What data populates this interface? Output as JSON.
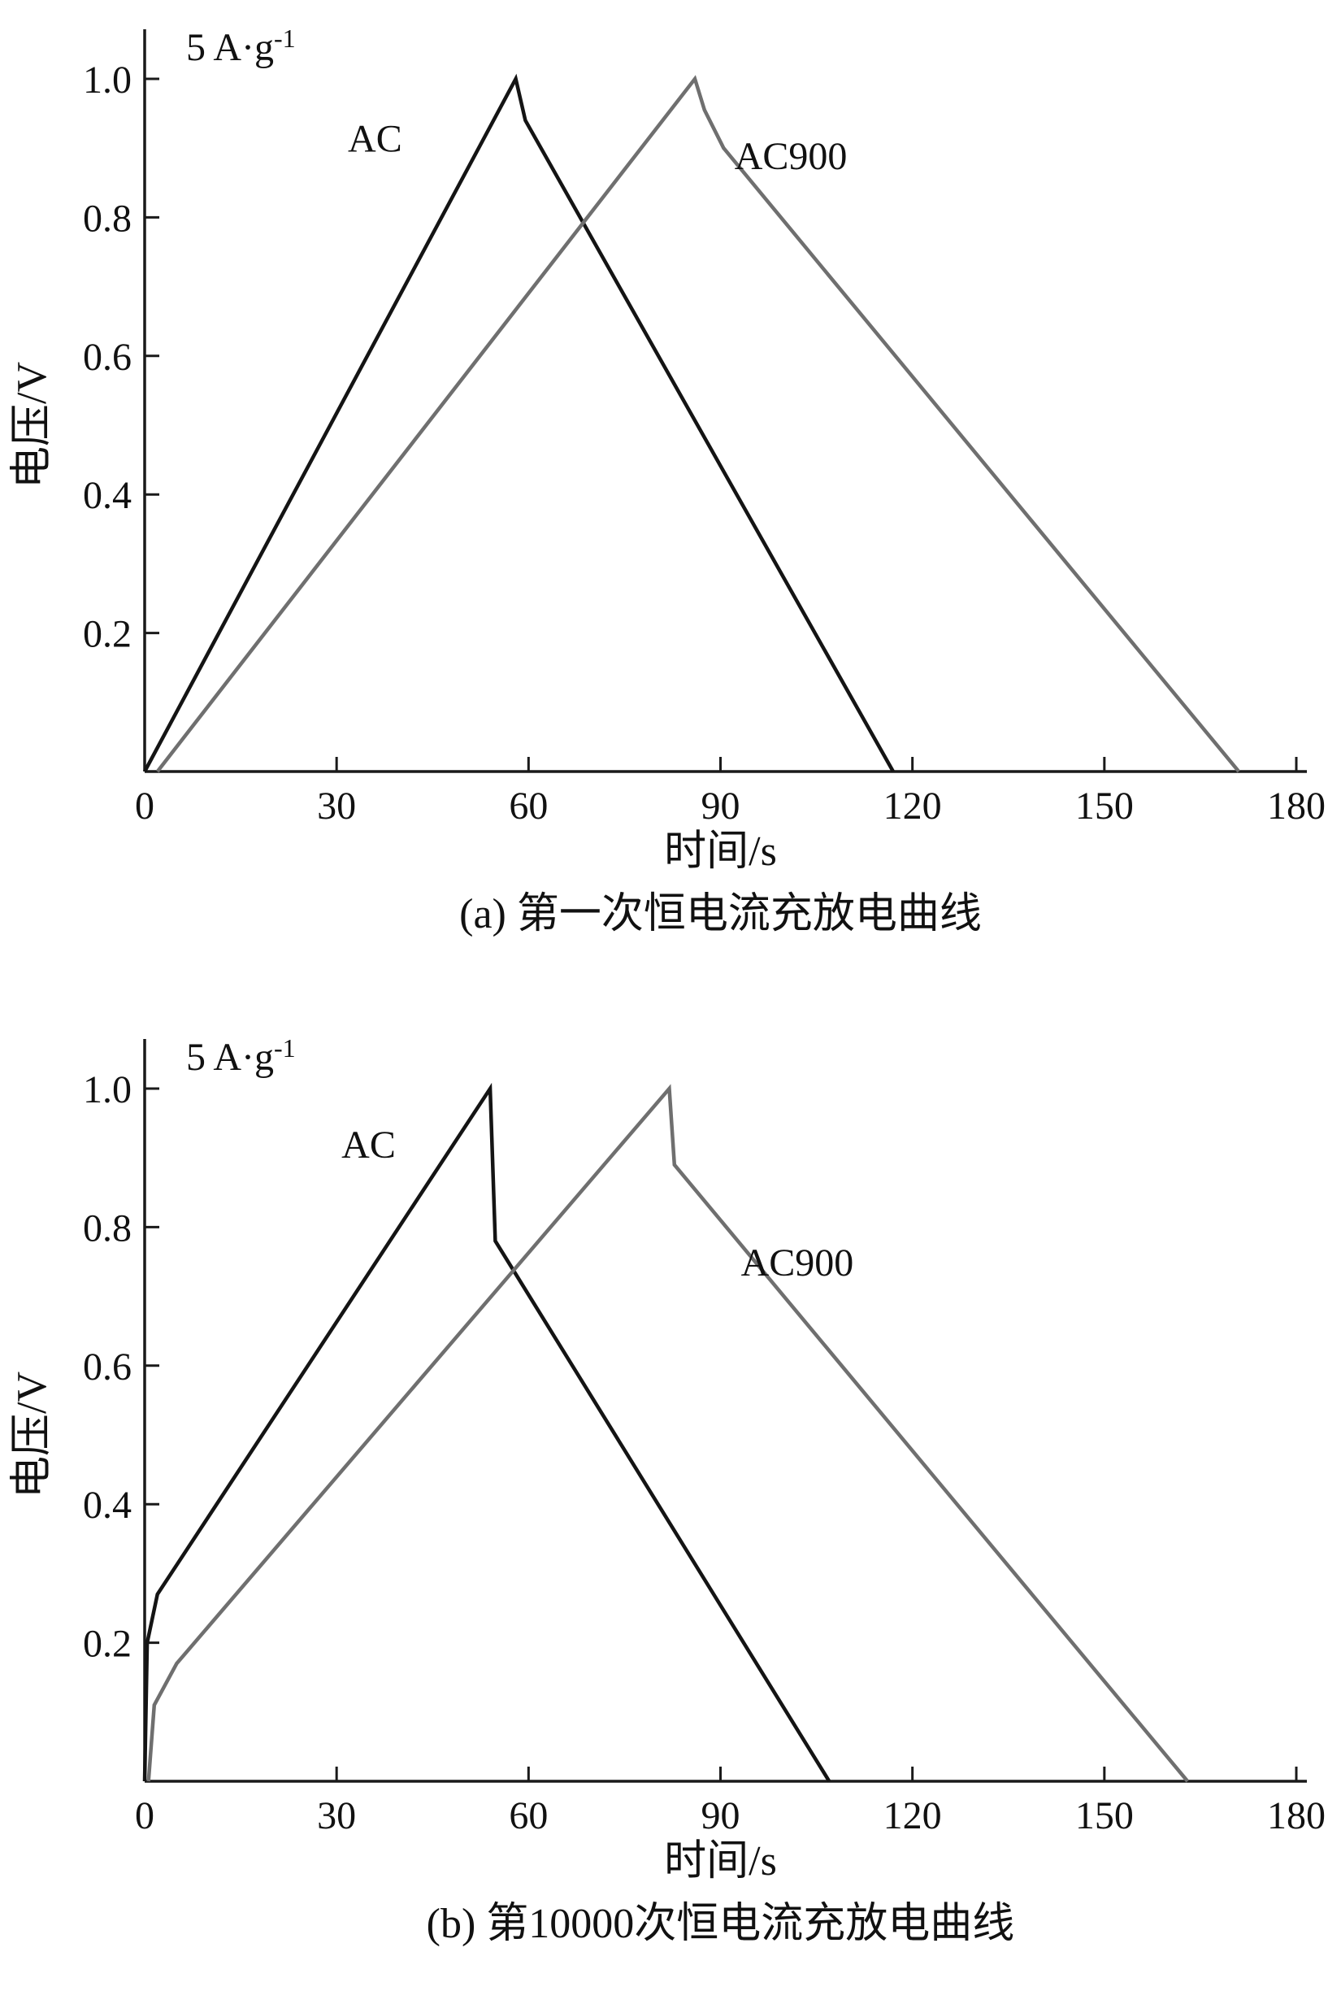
{
  "page": {
    "background": "#ffffff",
    "axis_color": "#1a1a1a"
  },
  "chart_data": [
    {
      "type": "line",
      "title": "(a) 第一次恒电流充放电曲线",
      "xlabel": "时间/s",
      "ylabel": "电压/V",
      "annotation": {
        "base": "5 A·g",
        "sup": "-1"
      },
      "axis_color": "#1a1a1a",
      "grid": false,
      "legend": "inline-labels",
      "xlim": [
        0,
        180
      ],
      "ylim": [
        0,
        1.07
      ],
      "xticks": [
        {
          "v": 0,
          "label": "0"
        },
        {
          "v": 30,
          "label": "30"
        },
        {
          "v": 60,
          "label": "60"
        },
        {
          "v": 90,
          "label": "90"
        },
        {
          "v": 120,
          "label": "120"
        },
        {
          "v": 150,
          "label": "150"
        },
        {
          "v": 180,
          "label": "180"
        }
      ],
      "yticks": [
        {
          "v": 0.2,
          "label": "0.2"
        },
        {
          "v": 0.4,
          "label": "0.4"
        },
        {
          "v": 0.6,
          "label": "0.6"
        },
        {
          "v": 0.8,
          "label": "0.8"
        },
        {
          "v": 1.0,
          "label": "1.0"
        }
      ],
      "series": [
        {
          "name": "AC",
          "color": "#141414",
          "label": {
            "text": "AC",
            "x": 36,
            "y": 0.895
          },
          "points": [
            [
              0,
              0
            ],
            [
              58,
              1.0
            ],
            [
              59.5,
              0.94
            ],
            [
              117,
              0
            ]
          ]
        },
        {
          "name": "AC900",
          "color": "#6f6f6f",
          "label": {
            "text": "AC900",
            "x": 101,
            "y": 0.87
          },
          "points": [
            [
              2,
              0
            ],
            [
              86,
              1.0
            ],
            [
              87.5,
              0.955
            ],
            [
              90.5,
              0.9
            ],
            [
              171,
              0
            ]
          ]
        }
      ]
    },
    {
      "type": "line",
      "title": "(b) 第10000次恒电流充放电曲线",
      "xlabel": "时间/s",
      "ylabel": "电压/V",
      "annotation": {
        "base": "5 A·g",
        "sup": "-1"
      },
      "axis_color": "#1a1a1a",
      "grid": false,
      "legend": "inline-labels",
      "xlim": [
        0,
        180
      ],
      "ylim": [
        0,
        1.07
      ],
      "xticks": [
        {
          "v": 0,
          "label": "0"
        },
        {
          "v": 30,
          "label": "30"
        },
        {
          "v": 60,
          "label": "60"
        },
        {
          "v": 90,
          "label": "90"
        },
        {
          "v": 120,
          "label": "120"
        },
        {
          "v": 150,
          "label": "150"
        },
        {
          "v": 180,
          "label": "180"
        }
      ],
      "yticks": [
        {
          "v": 0.2,
          "label": "0.2"
        },
        {
          "v": 0.4,
          "label": "0.4"
        },
        {
          "v": 0.6,
          "label": "0.6"
        },
        {
          "v": 0.8,
          "label": "0.8"
        },
        {
          "v": 1.0,
          "label": "1.0"
        }
      ],
      "series": [
        {
          "name": "AC",
          "color": "#141414",
          "label": {
            "text": "AC",
            "x": 35,
            "y": 0.9
          },
          "points": [
            [
              0,
              0
            ],
            [
              0.4,
              0.2
            ],
            [
              2,
              0.27
            ],
            [
              54,
              1.0
            ],
            [
              54.8,
              0.78
            ],
            [
              107,
              0
            ]
          ]
        },
        {
          "name": "AC900",
          "color": "#6f6f6f",
          "label": {
            "text": "AC900",
            "x": 102,
            "y": 0.73
          },
          "points": [
            [
              0.6,
              0
            ],
            [
              1.5,
              0.11
            ],
            [
              5,
              0.17
            ],
            [
              82,
              1.0
            ],
            [
              82.8,
              0.89
            ],
            [
              163,
              0
            ]
          ]
        }
      ]
    }
  ]
}
